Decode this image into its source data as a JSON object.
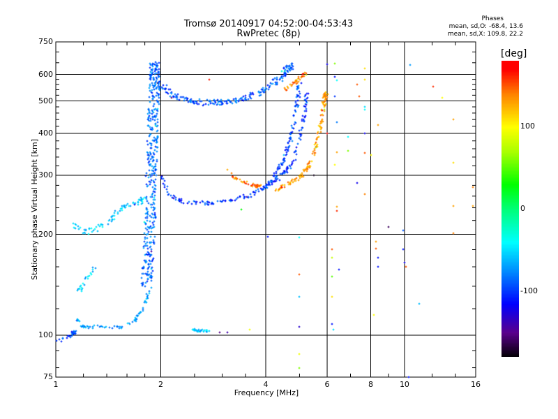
{
  "chart_data": {
    "type": "scatter",
    "title": "Tromsø 20140917 04:52:00-04:53:43",
    "subtitle": "RwPretec (8p)",
    "xlabel": "Frequency [MHz]",
    "ylabel": "Stationary phase Virtual Height [km]",
    "xscale": "log",
    "yscale": "log",
    "xlim": [
      1,
      16
    ],
    "ylim": [
      75,
      750
    ],
    "xticks": [
      "1",
      "2",
      "4",
      "6",
      "8",
      "10",
      "16"
    ],
    "xtick_values": [
      1,
      2,
      4,
      6,
      8,
      10,
      16
    ],
    "yticks": [
      "75",
      "100",
      "200",
      "300",
      "400",
      "500",
      "600",
      "750"
    ],
    "ytick_values": [
      75,
      100,
      200,
      300,
      400,
      500,
      600,
      750
    ],
    "grid": true,
    "phase_stats": {
      "header": "Phases",
      "o_line": "mean, sd,O: -68.4, 13.6",
      "x_line": "mean, sd,X: 109.8, 22.2"
    },
    "colorbar": {
      "label": "[deg]",
      "range": [
        -180,
        180
      ],
      "ticks": [
        "100",
        "0",
        "-100"
      ],
      "tick_values": [
        100,
        0,
        -100
      ]
    },
    "traces": [
      {
        "name": "low-E-O",
        "phase": -95,
        "n": 30,
        "spread": 0.012,
        "points": [
          [
            1.0,
            96
          ],
          [
            1.08,
            98
          ],
          [
            1.12,
            101
          ],
          [
            1.14,
            103
          ]
        ]
      },
      {
        "name": "E-O",
        "phase": -70,
        "n": 70,
        "spread": 0.01,
        "points": [
          [
            1.14,
            112
          ],
          [
            1.2,
            106
          ],
          [
            1.35,
            106
          ],
          [
            1.55,
            106
          ],
          [
            1.68,
            110
          ],
          [
            1.78,
            120
          ],
          [
            1.85,
            135
          ]
        ]
      },
      {
        "name": "column-F",
        "phase": -85,
        "n": 420,
        "spread": 0.035,
        "points": [
          [
            1.82,
            140
          ],
          [
            1.86,
            200
          ],
          [
            1.88,
            300
          ],
          [
            1.9,
            420
          ],
          [
            1.92,
            560
          ],
          [
            1.93,
            640
          ]
        ]
      },
      {
        "name": "F1-trace",
        "phase": -55,
        "n": 80,
        "spread": 0.02,
        "points": [
          [
            1.13,
            213
          ],
          [
            1.2,
            203
          ],
          [
            1.33,
            210
          ],
          [
            1.45,
            222
          ],
          [
            1.55,
            240
          ],
          [
            1.7,
            245
          ],
          [
            1.8,
            255
          ]
        ]
      },
      {
        "name": "low-trace",
        "phase": -55,
        "n": 25,
        "spread": 0.012,
        "points": [
          [
            1.16,
            135
          ],
          [
            1.2,
            142
          ],
          [
            1.25,
            152
          ],
          [
            1.3,
            160
          ]
        ]
      },
      {
        "name": "F2-O",
        "phase": -100,
        "n": 180,
        "spread": 0.012,
        "points": [
          [
            2.0,
            300
          ],
          [
            2.1,
            265
          ],
          [
            2.3,
            250
          ],
          [
            2.7,
            248
          ],
          [
            3.2,
            252
          ],
          [
            3.6,
            262
          ],
          [
            4.0,
            278
          ],
          [
            4.4,
            295
          ],
          [
            4.8,
            330
          ],
          [
            5.0,
            380
          ],
          [
            5.15,
            450
          ],
          [
            5.25,
            530
          ]
        ]
      },
      {
        "name": "F2-O-upper",
        "phase": -95,
        "n": 110,
        "spread": 0.012,
        "points": [
          [
            3.9,
            270
          ],
          [
            4.2,
            295
          ],
          [
            4.5,
            330
          ],
          [
            4.7,
            380
          ],
          [
            4.85,
            440
          ],
          [
            4.95,
            520
          ],
          [
            5.0,
            560
          ]
        ]
      },
      {
        "name": "F2-X-left",
        "phase": 140,
        "n": 40,
        "spread": 0.01,
        "points": [
          [
            3.1,
            312
          ],
          [
            3.3,
            292
          ],
          [
            3.6,
            282
          ],
          [
            3.85,
            278
          ]
        ]
      },
      {
        "name": "F2-X",
        "phase": 130,
        "n": 140,
        "spread": 0.012,
        "points": [
          [
            4.3,
            272
          ],
          [
            4.7,
            285
          ],
          [
            5.1,
            300
          ],
          [
            5.4,
            330
          ],
          [
            5.6,
            380
          ],
          [
            5.8,
            440
          ],
          [
            5.9,
            500
          ],
          [
            5.97,
            530
          ]
        ]
      },
      {
        "name": "2F-O",
        "phase": -90,
        "n": 220,
        "spread": 0.02,
        "points": [
          [
            2.0,
            560
          ],
          [
            2.2,
            515
          ],
          [
            2.6,
            495
          ],
          [
            3.0,
            495
          ],
          [
            3.4,
            505
          ],
          [
            3.8,
            525
          ],
          [
            4.2,
            560
          ],
          [
            4.5,
            600
          ],
          [
            4.75,
            640
          ]
        ]
      },
      {
        "name": "2F-X",
        "phase": 140,
        "n": 40,
        "spread": 0.012,
        "points": [
          [
            4.5,
            540
          ],
          [
            4.8,
            565
          ],
          [
            5.05,
            590
          ],
          [
            5.2,
            605
          ]
        ]
      },
      {
        "name": "E-high",
        "phase": -60,
        "n": 30,
        "spread": 0.008,
        "points": [
          [
            2.45,
            104
          ],
          [
            2.6,
            103
          ],
          [
            2.8,
            103
          ]
        ]
      }
    ],
    "scatter": [
      [
        2.95,
        102,
        -150
      ],
      [
        3.1,
        102,
        -140
      ],
      [
        3.6,
        104,
        95
      ],
      [
        5.0,
        88,
        95
      ],
      [
        5.0,
        80,
        60
      ],
      [
        5.0,
        106,
        -130
      ],
      [
        5.0,
        130,
        -60
      ],
      [
        5.0,
        152,
        150
      ],
      [
        5.0,
        196,
        -40
      ],
      [
        4.05,
        197,
        -110
      ],
      [
        6.2,
        180,
        150
      ],
      [
        6.2,
        170,
        80
      ],
      [
        6.2,
        150,
        50
      ],
      [
        6.25,
        104,
        -50
      ],
      [
        6.2,
        108,
        -110
      ],
      [
        6.5,
        157,
        -110
      ],
      [
        6.2,
        130,
        110
      ],
      [
        8.3,
        190,
        130
      ],
      [
        8.3,
        181,
        150
      ],
      [
        8.4,
        170,
        -110
      ],
      [
        8.4,
        160,
        -110
      ],
      [
        9.0,
        210,
        -160
      ],
      [
        9.9,
        205,
        -90
      ],
      [
        9.9,
        180,
        -110
      ],
      [
        10.0,
        165,
        -120
      ],
      [
        10.1,
        160,
        150
      ],
      [
        11.0,
        124,
        -60
      ],
      [
        8.15,
        115,
        100
      ],
      [
        10.3,
        75,
        -110
      ],
      [
        13.8,
        201,
        140
      ],
      [
        13.8,
        243,
        130
      ],
      [
        13.8,
        327,
        110
      ],
      [
        15.7,
        276,
        140
      ],
      [
        15.7,
        243,
        130
      ],
      [
        13.8,
        440,
        130
      ],
      [
        12.1,
        553,
        160
      ],
      [
        12.8,
        510,
        100
      ],
      [
        10.4,
        641,
        -70
      ],
      [
        6.0,
        642,
        -120
      ],
      [
        6.3,
        645,
        60
      ],
      [
        7.7,
        625,
        110
      ],
      [
        7.7,
        580,
        110
      ],
      [
        7.3,
        560,
        150
      ],
      [
        7.4,
        515,
        150
      ],
      [
        7.7,
        480,
        -50
      ],
      [
        7.7,
        470,
        -40
      ],
      [
        6.3,
        590,
        -110
      ],
      [
        6.4,
        575,
        -40
      ],
      [
        6.3,
        515,
        -100
      ],
      [
        6.4,
        432,
        -80
      ],
      [
        6.9,
        390,
        -40
      ],
      [
        6.9,
        355,
        60
      ],
      [
        6.4,
        352,
        130
      ],
      [
        6.3,
        323,
        100
      ],
      [
        7.7,
        350,
        150
      ],
      [
        7.3,
        285,
        -120
      ],
      [
        7.7,
        400,
        -120
      ],
      [
        8.4,
        423,
        130
      ],
      [
        8.0,
        345,
        100
      ],
      [
        7.7,
        263,
        140
      ],
      [
        6.4,
        242,
        130
      ],
      [
        6.4,
        235,
        160
      ],
      [
        5.5,
        300,
        -175
      ],
      [
        3.4,
        237,
        30
      ],
      [
        2.75,
        578,
        165
      ],
      [
        5.9,
        470,
        70
      ],
      [
        6.0,
        400,
        170
      ]
    ]
  }
}
